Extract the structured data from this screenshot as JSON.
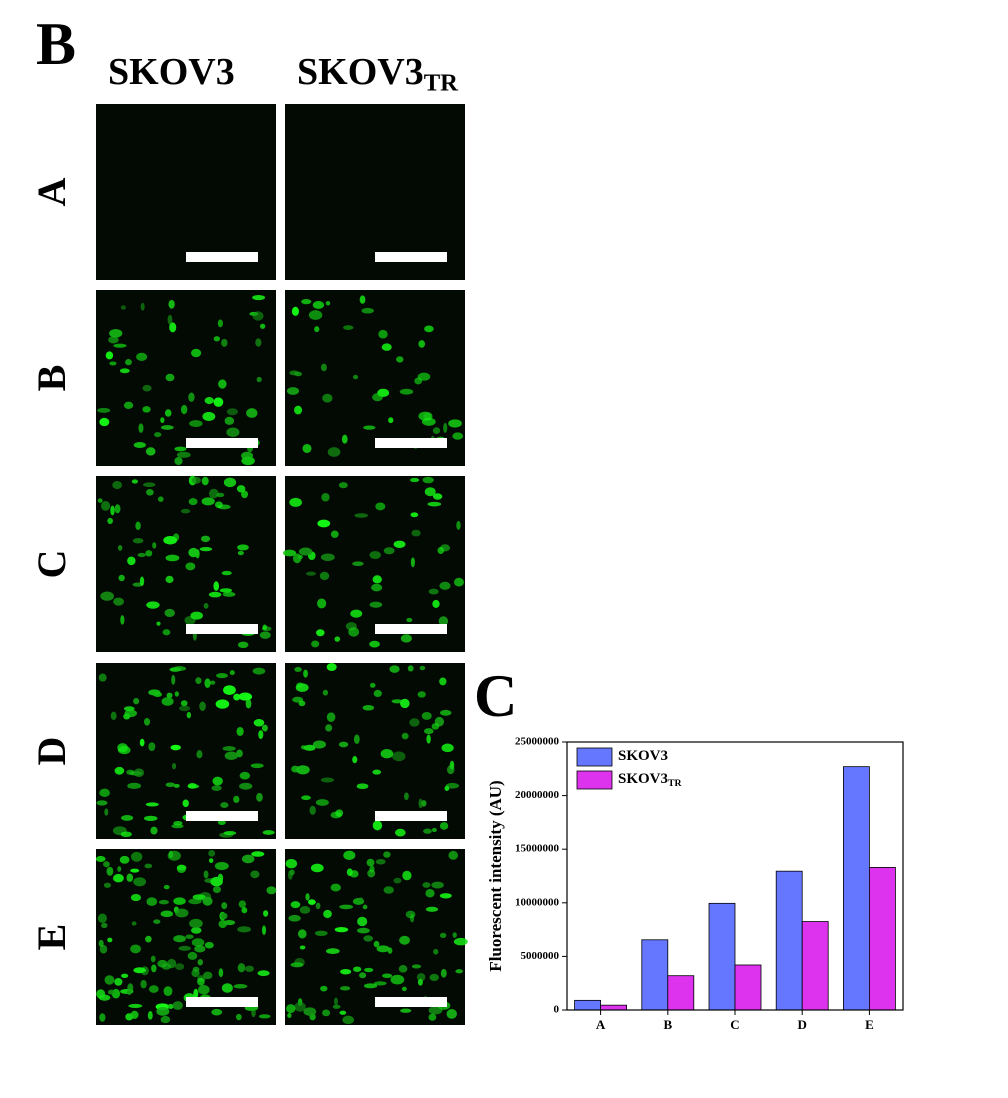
{
  "panel_b": {
    "label": "B",
    "columns": [
      {
        "text": "SKOV3"
      },
      {
        "text": "SKOV3",
        "subscript": "TR"
      }
    ],
    "rows": [
      "A",
      "B",
      "C",
      "D",
      "E"
    ]
  },
  "chart_data": {
    "type": "bar",
    "panel_label": "C",
    "y_label": "Fluorescent intensity (AU)",
    "categories": [
      "A",
      "B",
      "C",
      "D",
      "E"
    ],
    "series": [
      {
        "name": "SKOV3",
        "color": "#6677ff",
        "values": [
          900000,
          6550000,
          9950000,
          12950000,
          22700000
        ]
      },
      {
        "name": "SKOV3",
        "subscript": "TR",
        "color": "#dd33ee",
        "values": [
          450000,
          3200000,
          4200000,
          8250000,
          13300000
        ]
      }
    ],
    "ylim": [
      0,
      25000000
    ],
    "yticks": [
      0,
      5000000,
      10000000,
      15000000,
      20000000,
      25000000
    ],
    "legend": "upper left"
  }
}
